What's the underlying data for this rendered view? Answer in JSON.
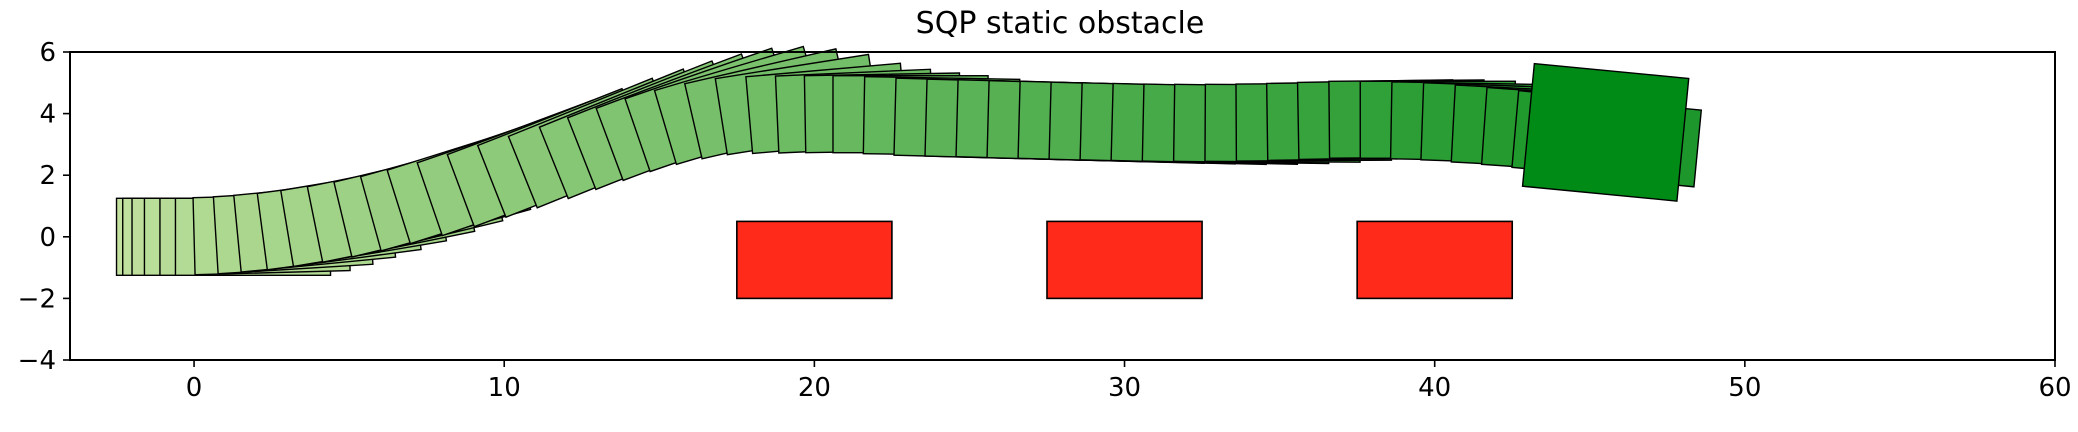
{
  "chart_data": {
    "type": "scatter",
    "title": "SQP static obstacle",
    "xlabel": "",
    "ylabel": "",
    "xlim": [
      -4,
      60
    ],
    "ylim": [
      -4,
      6
    ],
    "xticks": [
      "0",
      "10",
      "20",
      "30",
      "40",
      "50",
      "60"
    ],
    "yticks": [
      "6",
      "4",
      "2",
      "0",
      "−2",
      "−4"
    ],
    "grid": false,
    "legend": "none",
    "obstacle_color": "#ff2a1a",
    "obstacles": [
      {
        "x": [
          17.5,
          22.5
        ],
        "y": [
          -2,
          0.5
        ]
      },
      {
        "x": [
          27.5,
          32.5
        ],
        "y": [
          -2,
          0.5
        ]
      },
      {
        "x": [
          37.5,
          42.5
        ],
        "y": [
          -2,
          0.5
        ]
      }
    ],
    "vehicle": {
      "length": 5.0,
      "width": 2.5
    },
    "trajectory_color_start": "#c3e2a0",
    "trajectory_color_end": "#008a16",
    "trajectory": {
      "x": [
        -2.5,
        -2.3,
        -2.0,
        -1.6,
        -1.1,
        -0.6,
        0.0,
        0.7,
        1.4,
        2.2,
        3.0,
        3.9,
        4.8,
        5.7,
        6.6,
        7.6,
        8.6,
        9.6,
        10.6,
        11.6,
        12.5,
        13.4,
        14.3,
        15.2,
        16.1,
        17.0,
        17.9,
        18.8,
        19.7,
        20.6,
        21.6,
        22.6,
        23.6,
        24.6,
        25.6,
        26.6,
        27.6,
        28.6,
        29.6,
        30.6,
        31.6,
        32.6,
        33.6,
        34.6,
        35.6,
        36.6,
        37.6,
        38.6,
        39.6,
        40.6,
        41.6,
        42.6,
        43.5
      ],
      "y": [
        0.0,
        0.0,
        0.0,
        0.0,
        0.0,
        0.0,
        0.02,
        0.05,
        0.1,
        0.17,
        0.27,
        0.4,
        0.56,
        0.75,
        0.97,
        1.22,
        1.5,
        1.8,
        2.1,
        2.4,
        2.7,
        3.0,
        3.3,
        3.55,
        3.75,
        3.9,
        3.95,
        3.97,
        3.98,
        3.98,
        3.95,
        3.9,
        3.87,
        3.85,
        3.82,
        3.8,
        3.77,
        3.75,
        3.73,
        3.71,
        3.7,
        3.7,
        3.71,
        3.73,
        3.76,
        3.8,
        3.8,
        3.78,
        3.75,
        3.68,
        3.6,
        3.5,
        3.35
      ],
      "heading_deg": [
        0,
        0,
        0,
        0,
        0,
        0,
        1.5,
        3.5,
        5.5,
        7.5,
        9.5,
        11.5,
        13.5,
        15.5,
        17.5,
        19,
        20.5,
        21.5,
        22,
        22,
        21.5,
        20.5,
        19,
        16.5,
        13,
        9,
        5,
        2.5,
        1,
        0,
        -1,
        -1.5,
        -1.5,
        -1.5,
        -1.5,
        -1.5,
        -1.5,
        -1.5,
        -1.5,
        -1.2,
        -0.8,
        -0.3,
        0.3,
        0.8,
        1,
        0.5,
        0,
        -1,
        -2,
        -3,
        -4,
        -5,
        -5.5
      ]
    },
    "final_pose": {
      "x": 48.0,
      "y": 3.15,
      "heading_deg": -5.5,
      "length": 5.0,
      "width": 4.0
    }
  }
}
